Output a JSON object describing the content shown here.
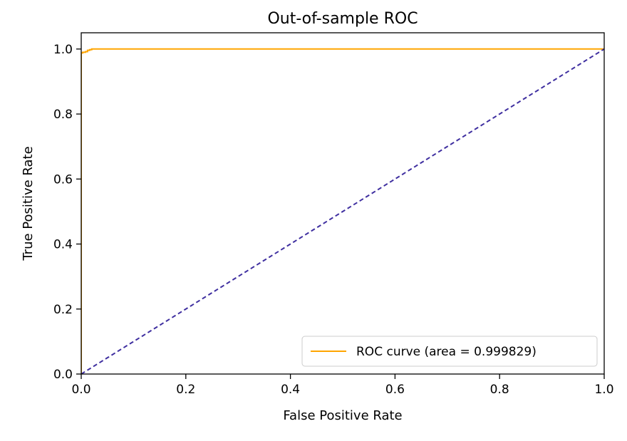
{
  "chart_data": {
    "type": "line",
    "title": "Out-of-sample ROC",
    "xlabel": "False Positive Rate",
    "ylabel": "True Positive Rate",
    "xlim": [
      0.0,
      1.0
    ],
    "ylim": [
      0.0,
      1.05
    ],
    "xticks": [
      0.0,
      0.2,
      0.4,
      0.6,
      0.8,
      1.0
    ],
    "xtick_labels": [
      "0.0",
      "0.2",
      "0.4",
      "0.6",
      "0.8",
      "1.0"
    ],
    "yticks": [
      0.0,
      0.2,
      0.4,
      0.6,
      0.8,
      1.0
    ],
    "ytick_labels": [
      "0.0",
      "0.2",
      "0.4",
      "0.6",
      "0.8",
      "1.0"
    ],
    "grid": false,
    "legend_position": "lower-right",
    "series": [
      {
        "name": "ROC curve (area = 0.999829)",
        "color": "#ffa500",
        "style": "solid",
        "x": [
          0.0,
          0.0,
          0.0,
          0.003,
          0.003,
          0.008,
          0.008,
          0.012,
          0.012,
          0.016,
          0.016,
          0.02,
          0.02,
          1.0
        ],
        "y": [
          0.0,
          0.5,
          0.988,
          0.988,
          0.99,
          0.99,
          0.992,
          0.992,
          0.996,
          0.996,
          0.998,
          0.998,
          1.0,
          1.0
        ]
      },
      {
        "name": "",
        "color": "#3f2fa0",
        "style": "dashed",
        "x": [
          0.0,
          1.0
        ],
        "y": [
          0.0,
          1.0
        ]
      }
    ]
  }
}
